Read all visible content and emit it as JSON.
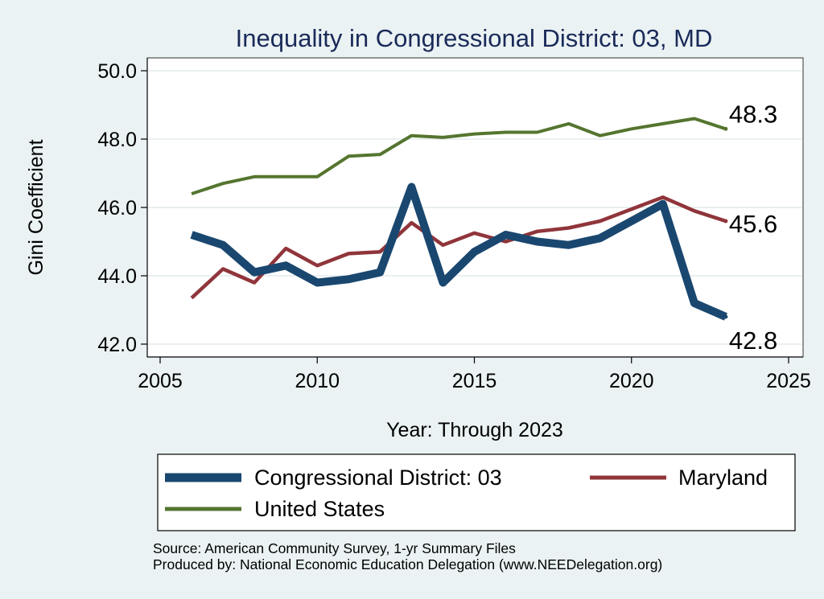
{
  "chart_data": {
    "type": "line",
    "title": "Inequality in Congressional District:  03, MD",
    "xlabel": "Year: Through 2023",
    "ylabel": "Gini Coefficient",
    "xlim": [
      2005,
      2025
    ],
    "ylim": [
      42.0,
      50.0
    ],
    "xticks": [
      "2005",
      "2010",
      "2015",
      "2020",
      "2025"
    ],
    "yticks": [
      "42.0",
      "44.0",
      "46.0",
      "48.0",
      "50.0"
    ],
    "grid": true,
    "legend_position": "bottom",
    "series": [
      {
        "name": "Congressional District:  03",
        "color": "#1a476f",
        "x": [
          2006,
          2007,
          2008,
          2009,
          2010,
          2011,
          2012,
          2013,
          2014,
          2015,
          2016,
          2017,
          2018,
          2019,
          2020,
          2021,
          2022,
          2023
        ],
        "values": [
          45.2,
          44.9,
          44.1,
          44.3,
          43.8,
          43.9,
          44.1,
          46.6,
          43.8,
          44.7,
          45.2,
          45.0,
          44.9,
          45.1,
          45.6,
          46.1,
          43.2,
          42.8
        ],
        "end_label": "42.8"
      },
      {
        "name": "Maryland",
        "color": "#90353b",
        "x": [
          2006,
          2007,
          2008,
          2009,
          2010,
          2011,
          2012,
          2013,
          2014,
          2015,
          2016,
          2017,
          2018,
          2019,
          2020,
          2021,
          2022,
          2023
        ],
        "values": [
          43.35,
          44.2,
          43.8,
          44.8,
          44.3,
          44.65,
          44.7,
          45.55,
          44.9,
          45.25,
          45.0,
          45.3,
          45.4,
          45.6,
          45.95,
          46.3,
          45.9,
          45.6
        ],
        "end_label": "45.6"
      },
      {
        "name": "United States",
        "color": "#55752f",
        "x": [
          2006,
          2007,
          2008,
          2009,
          2010,
          2011,
          2012,
          2013,
          2014,
          2015,
          2016,
          2017,
          2018,
          2019,
          2020,
          2021,
          2022,
          2023
        ],
        "values": [
          46.4,
          46.7,
          46.9,
          46.9,
          46.9,
          47.5,
          47.55,
          48.1,
          48.05,
          48.15,
          48.2,
          48.2,
          48.45,
          48.1,
          48.3,
          48.45,
          48.6,
          48.3
        ],
        "end_label": "48.3"
      }
    ]
  },
  "legend": {
    "items": [
      "Congressional District:  03",
      "Maryland",
      "United States"
    ]
  },
  "source": {
    "line1": "Source: American Community Survey, 1-yr Summary Files",
    "line2": "Produced by: National Economic Education Delegation (www.NEEDelegation.org)"
  }
}
